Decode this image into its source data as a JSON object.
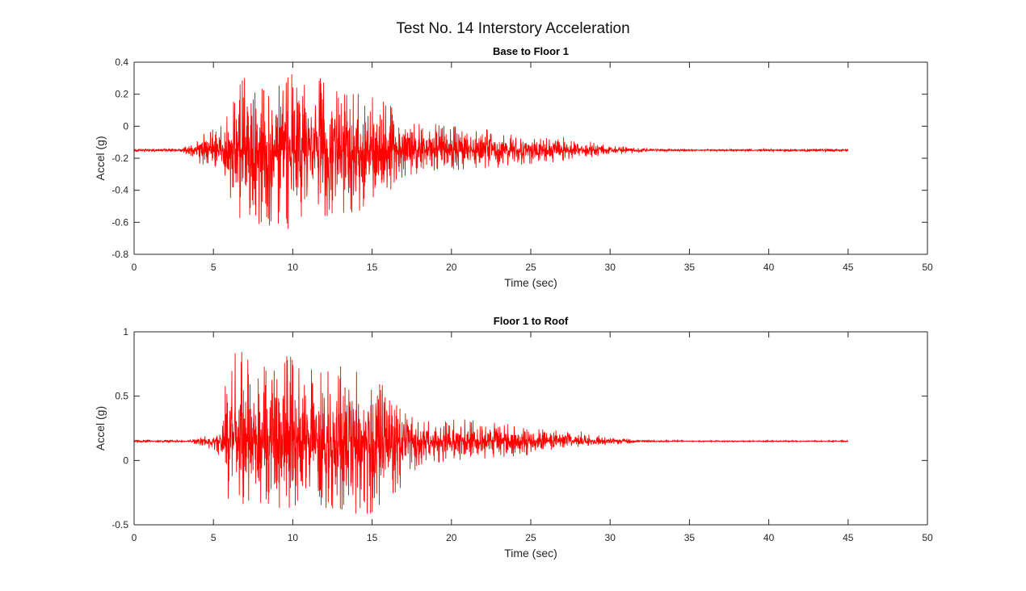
{
  "figure": {
    "suptitle": "Test No. 14 Interstory Acceleration",
    "trace_color": "#ff0000"
  },
  "chart_data": [
    {
      "type": "line",
      "title": "Base to Floor 1",
      "xlabel": "Time (sec)",
      "ylabel": "Accel (g)",
      "xlim": [
        0,
        50
      ],
      "ylim": [
        -0.8,
        0.4
      ],
      "xticks": [
        0,
        5,
        10,
        15,
        20,
        25,
        30,
        35,
        40,
        45,
        50
      ],
      "yticks": [
        "-0.8",
        "-0.6",
        "-0.4",
        "-0.2",
        "0",
        "0.2",
        "0.4"
      ],
      "grid": false,
      "series": [
        {
          "color": "#ff0000",
          "baseline": -0.15,
          "x_range": [
            0,
            45
          ],
          "envelope_time": [
            0,
            3,
            4,
            5.5,
            6.5,
            9.3,
            11,
            14.2,
            16,
            17,
            19,
            22,
            25,
            27,
            30,
            33,
            35,
            45
          ],
          "envelope_high": [
            -0.14,
            -0.14,
            -0.07,
            0.02,
            0.34,
            0.33,
            0.34,
            0.2,
            0.18,
            0.02,
            0.02,
            0.0,
            -0.08,
            -0.06,
            -0.12,
            -0.14,
            -0.145,
            -0.14
          ],
          "envelope_low": [
            -0.16,
            -0.16,
            -0.23,
            -0.27,
            -0.6,
            -0.69,
            -0.58,
            -0.6,
            -0.45,
            -0.32,
            -0.28,
            -0.27,
            -0.24,
            -0.22,
            -0.18,
            -0.16,
            -0.155,
            -0.16
          ]
        }
      ]
    },
    {
      "type": "line",
      "title": "Floor 1 to Roof",
      "xlabel": "Time (sec)",
      "ylabel": "Accel (g)",
      "xlim": [
        0,
        50
      ],
      "ylim": [
        -0.5,
        1
      ],
      "xticks": [
        0,
        5,
        10,
        15,
        20,
        25,
        30,
        35,
        40,
        45,
        50
      ],
      "yticks": [
        "-0.5",
        "0",
        "0.5",
        "1"
      ],
      "grid": false,
      "series": [
        {
          "color": "#ff0000",
          "baseline": 0.15,
          "x_range": [
            0,
            45
          ],
          "envelope_time": [
            0,
            3.5,
            4.5,
            5.5,
            5.9,
            9,
            11.5,
            14.5,
            16.5,
            18,
            20,
            23,
            26,
            28,
            30,
            32,
            35,
            45
          ],
          "envelope_high": [
            0.16,
            0.16,
            0.19,
            0.22,
            0.85,
            0.87,
            0.7,
            0.77,
            0.45,
            0.35,
            0.33,
            0.3,
            0.25,
            0.23,
            0.18,
            0.16,
            0.155,
            0.155
          ],
          "envelope_low": [
            0.14,
            0.14,
            0.1,
            0.02,
            -0.32,
            -0.44,
            -0.35,
            -0.45,
            -0.3,
            -0.05,
            0.0,
            0.02,
            0.05,
            0.1,
            0.12,
            0.14,
            0.145,
            0.145
          ]
        }
      ]
    }
  ]
}
